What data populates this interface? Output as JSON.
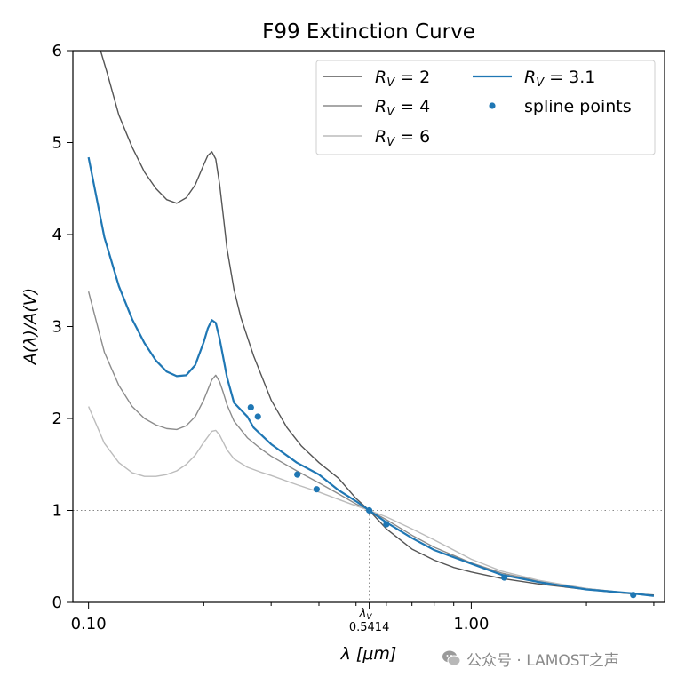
{
  "chart_data": {
    "type": "line",
    "title": "F99 Extinction Curve",
    "xlabel": "λ [μm]",
    "ylabel": "A(λ)/A(V)",
    "x_scale": "log",
    "xlim": [
      0.091,
      3.2
    ],
    "ylim": [
      0,
      6
    ],
    "x_ticks": [
      {
        "value": 0.1,
        "label": "0.10"
      },
      {
        "value": 1.0,
        "label": "1.00"
      }
    ],
    "y_ticks": [
      0,
      1,
      2,
      3,
      4,
      5,
      6
    ],
    "lambda_v": {
      "value": 0.5414,
      "symbol": "λ",
      "subscript": "V",
      "label": "0.5414"
    },
    "reference_line_y": 1,
    "grid": false,
    "legend_position": "top-right",
    "series": [
      {
        "name": "R_V = 2",
        "legend_text": "RV = 2",
        "color": "#555555",
        "x": [
          0.1075,
          0.112,
          0.12,
          0.13,
          0.14,
          0.15,
          0.16,
          0.17,
          0.18,
          0.19,
          0.2,
          0.205,
          0.21,
          0.215,
          0.22,
          0.225,
          0.23,
          0.24,
          0.25,
          0.27,
          0.3,
          0.33,
          0.36,
          0.4,
          0.45,
          0.5,
          0.5414,
          0.6,
          0.7,
          0.8,
          0.9,
          1.0,
          1.2,
          1.5,
          2.0,
          2.5,
          3.0
        ],
        "y": [
          6.0,
          5.75,
          5.3,
          4.95,
          4.68,
          4.5,
          4.38,
          4.34,
          4.4,
          4.54,
          4.76,
          4.86,
          4.9,
          4.82,
          4.55,
          4.2,
          3.85,
          3.4,
          3.1,
          2.68,
          2.2,
          1.9,
          1.7,
          1.52,
          1.35,
          1.13,
          1.0,
          0.8,
          0.58,
          0.46,
          0.38,
          0.33,
          0.26,
          0.2,
          0.14,
          0.1,
          0.08
        ]
      },
      {
        "name": "R_V = 4",
        "legend_text": "RV = 4",
        "color": "#8c8c8c",
        "x": [
          0.1,
          0.11,
          0.12,
          0.13,
          0.14,
          0.15,
          0.16,
          0.17,
          0.18,
          0.19,
          0.2,
          0.21,
          0.215,
          0.22,
          0.225,
          0.23,
          0.24,
          0.26,
          0.28,
          0.3,
          0.35,
          0.4,
          0.45,
          0.5,
          0.5414,
          0.6,
          0.7,
          0.8,
          1.0,
          1.2,
          1.5,
          2.0,
          3.0
        ],
        "y": [
          3.38,
          2.72,
          2.36,
          2.13,
          2.0,
          1.93,
          1.89,
          1.88,
          1.92,
          2.02,
          2.2,
          2.42,
          2.47,
          2.4,
          2.28,
          2.15,
          1.97,
          1.79,
          1.68,
          1.59,
          1.43,
          1.3,
          1.18,
          1.07,
          1.0,
          0.9,
          0.73,
          0.6,
          0.43,
          0.32,
          0.23,
          0.15,
          0.07
        ]
      },
      {
        "name": "R_V = 6",
        "legend_text": "RV = 6",
        "color": "#bcbcbc",
        "x": [
          0.1,
          0.11,
          0.12,
          0.13,
          0.14,
          0.15,
          0.16,
          0.17,
          0.18,
          0.19,
          0.2,
          0.21,
          0.215,
          0.22,
          0.225,
          0.23,
          0.24,
          0.26,
          0.28,
          0.3,
          0.35,
          0.4,
          0.45,
          0.5,
          0.5414,
          0.6,
          0.7,
          0.8,
          1.0,
          1.2,
          1.5,
          2.0,
          3.0
        ],
        "y": [
          2.13,
          1.73,
          1.52,
          1.41,
          1.37,
          1.37,
          1.39,
          1.43,
          1.5,
          1.6,
          1.74,
          1.86,
          1.87,
          1.82,
          1.74,
          1.66,
          1.56,
          1.47,
          1.42,
          1.38,
          1.28,
          1.2,
          1.12,
          1.05,
          1.0,
          0.93,
          0.8,
          0.68,
          0.47,
          0.34,
          0.24,
          0.15,
          0.07
        ]
      },
      {
        "name": "R_V = 3.1",
        "legend_text": "RV = 3.1",
        "color": "#1f77b4",
        "x": [
          0.1,
          0.11,
          0.12,
          0.13,
          0.14,
          0.15,
          0.16,
          0.17,
          0.18,
          0.19,
          0.2,
          0.205,
          0.21,
          0.215,
          0.22,
          0.23,
          0.24,
          0.26,
          0.27,
          0.3,
          0.35,
          0.4,
          0.45,
          0.5,
          0.5414,
          0.6,
          0.7,
          0.8,
          1.0,
          1.2,
          1.5,
          2.0,
          2.6,
          3.0
        ],
        "y": [
          4.84,
          3.97,
          3.44,
          3.08,
          2.82,
          2.63,
          2.51,
          2.46,
          2.47,
          2.58,
          2.83,
          2.98,
          3.07,
          3.04,
          2.87,
          2.45,
          2.17,
          2.02,
          1.9,
          1.72,
          1.52,
          1.39,
          1.22,
          1.1,
          1.0,
          0.87,
          0.7,
          0.57,
          0.42,
          0.3,
          0.22,
          0.14,
          0.1,
          0.07
        ]
      }
    ],
    "spline_points": {
      "name": "spline points",
      "legend_text": "spline points",
      "color": "#1f77b4",
      "x": [
        0.2655,
        0.277,
        0.3512,
        0.3944,
        0.5414,
        0.6,
        1.22,
        2.65
      ],
      "y": [
        2.12,
        2.02,
        1.39,
        1.23,
        1.0,
        0.85,
        0.27,
        0.08
      ]
    }
  },
  "watermark": {
    "text": "公众号 · LAMOST之声",
    "icon": "wechat-icon",
    "color": "#8a8a8a"
  }
}
